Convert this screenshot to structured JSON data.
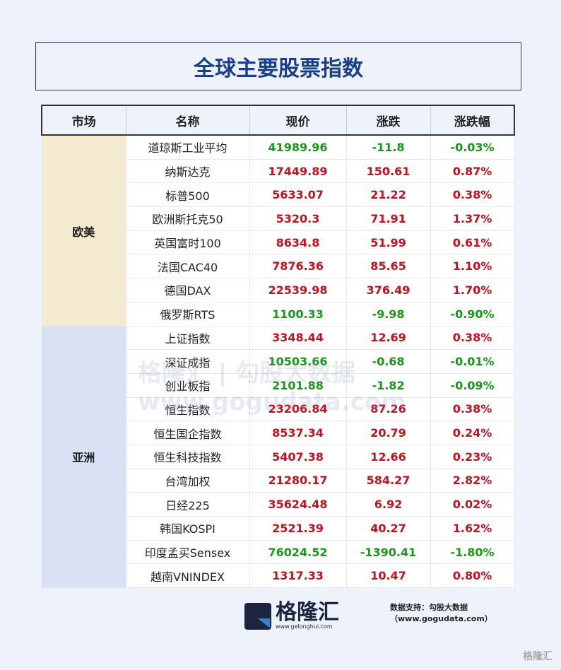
{
  "title": "全球主要股票指数",
  "headers": [
    "市场",
    "名称",
    "现价",
    "涨跌",
    "涨跌幅"
  ],
  "groups": [
    {
      "market": "欧美",
      "rows": [
        [
          "道琼斯工业平均",
          "41989.96",
          "-11.8",
          "-0.03%"
        ],
        [
          "纳斯达克",
          "17449.89",
          "150.61",
          "0.87%"
        ],
        [
          "标普500",
          "5633.07",
          "21.22",
          "0.38%"
        ],
        [
          "欧洲斯托克50",
          "5320.3",
          "71.91",
          "1.37%"
        ],
        [
          "英国富时100",
          "8634.8",
          "51.99",
          "0.61%"
        ],
        [
          "法国CAC40",
          "7876.36",
          "85.65",
          "1.10%"
        ],
        [
          "德国DAX",
          "22539.98",
          "376.49",
          "1.70%"
        ],
        [
          "俄罗斯RTS",
          "1100.33",
          "-9.98",
          "-0.90%"
        ]
      ]
    },
    {
      "market": "亚洲",
      "rows": [
        [
          "上证指数",
          "3348.44",
          "12.69",
          "0.38%"
        ],
        [
          "深证成指",
          "10503.66",
          "-0.68",
          "-0.01%"
        ],
        [
          "创业板指",
          "2101.88",
          "-1.82",
          "-0.09%"
        ],
        [
          "恒生指数",
          "23206.84",
          "87.26",
          "0.38%"
        ],
        [
          "恒生国企指数",
          "8537.34",
          "20.79",
          "0.24%"
        ],
        [
          "恒生科技指数",
          "5407.38",
          "12.66",
          "0.23%"
        ],
        [
          "台湾加权",
          "21280.17",
          "584.27",
          "2.82%"
        ],
        [
          "日经225",
          "35624.48",
          "6.92",
          "0.02%"
        ],
        [
          "韩国KOSPI",
          "2521.39",
          "40.27",
          "1.62%"
        ],
        [
          "印度孟买Sensex",
          "76024.52",
          "-1390.41",
          "-1.80%"
        ],
        [
          "越南VNINDEX",
          "1317.33",
          "10.47",
          "0.80%"
        ]
      ]
    }
  ],
  "colors": {
    "up": "#c0121f",
    "down": "#1b951b",
    "europe_bg": "#f3ead0",
    "asia_bg": "#d8e2f4"
  },
  "watermark": "格隆汇 | 勾股大数据 www.gogudata.com",
  "source": "数据支持：勾股大数据（www.gogudata.com）",
  "logo": {
    "brand": "格隆汇",
    "url": "www.gelonghui.com"
  },
  "corner_mark": "格隆汇"
}
